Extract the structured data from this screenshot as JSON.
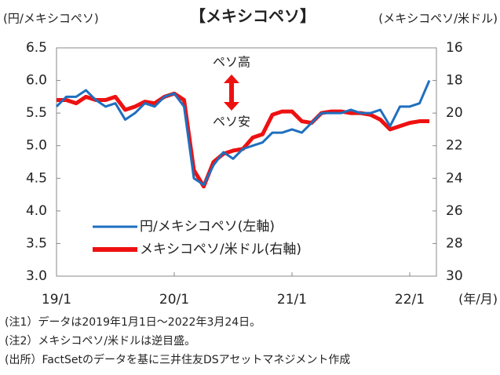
{
  "chart_data": {
    "type": "line",
    "title": "【メキシコペソ】",
    "y_label": "(円/メキシコペソ)",
    "y2_label": "(メキシコペソ/米ドル)",
    "x_label": "(年/月)",
    "annotations": [
      "ペソ高",
      "ペソ安"
    ],
    "categories": [
      "19/1",
      null,
      null,
      null,
      null,
      null,
      null,
      null,
      null,
      null,
      null,
      null,
      "20/1",
      null,
      null,
      null,
      null,
      null,
      null,
      null,
      null,
      null,
      null,
      null,
      "21/1",
      null,
      null,
      null,
      null,
      null,
      null,
      null,
      null,
      null,
      null,
      null,
      "22/1",
      null,
      null
    ],
    "series": [
      {
        "name": "円/メキシコペソ(左軸)",
        "color": "#1f6fbf",
        "values": [
          5.6,
          5.75,
          5.75,
          5.85,
          5.7,
          5.6,
          5.65,
          5.4,
          5.5,
          5.65,
          5.6,
          5.75,
          5.8,
          5.6,
          4.5,
          4.4,
          4.7,
          4.9,
          4.8,
          4.95,
          5.0,
          5.05,
          5.2,
          5.2,
          5.25,
          5.2,
          5.35,
          5.5,
          5.5,
          5.5,
          5.55,
          5.5,
          5.5,
          5.55,
          5.3,
          5.6,
          5.6,
          5.65,
          6.0
        ]
      },
      {
        "name": "メキシコペソ/米ドル(右軸)",
        "color": "#ee1111",
        "axis": "y2",
        "values": [
          19.2,
          19.2,
          19.4,
          19.0,
          19.2,
          19.2,
          19.0,
          19.8,
          19.6,
          19.3,
          19.4,
          19.0,
          18.8,
          19.2,
          23.5,
          24.5,
          23.0,
          22.5,
          22.3,
          22.2,
          21.5,
          21.3,
          20.1,
          19.9,
          19.9,
          20.5,
          20.6,
          20.0,
          19.9,
          19.9,
          20.0,
          20.0,
          20.1,
          20.4,
          21.0,
          20.8,
          20.6,
          20.5,
          20.5
        ]
      }
    ],
    "ylim": [
      3,
      6.5
    ],
    "yticks": [
      {
        "value": 3,
        "label": "3.0"
      },
      3.5,
      {
        "value": 4,
        "label": "4.0"
      },
      4.5,
      {
        "value": 5,
        "label": "5.0"
      },
      5.5,
      {
        "value": 6,
        "label": "6.0"
      },
      6.5
    ],
    "y2lim": [
      30,
      16
    ],
    "y2ticks": [
      16,
      18,
      20,
      22,
      24,
      26,
      28,
      30
    ]
  },
  "notes": [
    "(注1）データは2019年1月1日～2022年3月24日。",
    "(注2）メキシコペソ/米ドルは逆目盛。",
    "(出所）FactSetのデータを基に三井住友DSアセットマネジメント作成"
  ]
}
